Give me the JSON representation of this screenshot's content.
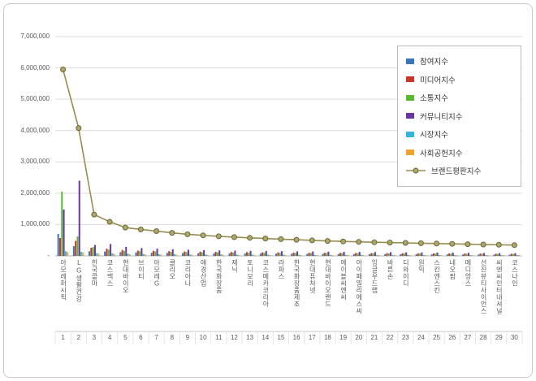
{
  "chart_data": {
    "type": "bar",
    "subtype": "grouped-bars-with-line-overlay",
    "title": "",
    "grid": true,
    "legend_position": "right-top",
    "categories": [
      "아모레퍼시픽",
      "LG생활건강",
      "한국콜마",
      "코스맥스",
      "현대바이오",
      "브이티",
      "아모레G",
      "클리오",
      "코리아나",
      "애경산업",
      "한국화장품",
      "제닉",
      "토니모리",
      "코스메카코리아",
      "라파스",
      "한국화장품제조",
      "현대퓨처넷",
      "현대바이오랜드",
      "에이블씨엔씨",
      "아이패밀리에스씨",
      "잉글우드랩",
      "바른손",
      "디와이디",
      "원익",
      "스킨엔스킨",
      "네오팜",
      "메디앙스",
      "선진뷰티사이언스",
      "씨엔씨인터내셔널",
      "코스나인"
    ],
    "ranks": [
      "1",
      "2",
      "3",
      "4",
      "5",
      "6",
      "7",
      "8",
      "9",
      "10",
      "11",
      "12",
      "13",
      "14",
      "15",
      "16",
      "17",
      "18",
      "19",
      "20",
      "21",
      "22",
      "23",
      "24",
      "25",
      "26",
      "27",
      "28",
      "29",
      "30"
    ],
    "y_axis": {
      "min": 0,
      "max": 7000000,
      "step": 1000000,
      "tick_labels": [
        "-",
        "1,000,000",
        "2,000,000",
        "3,000,000",
        "4,000,000",
        "5,000,000",
        "6,000,000",
        "7,000,000"
      ]
    },
    "series": [
      {
        "name": "참여지수",
        "color": "#3B74B8",
        "values": [
          700000,
          310000,
          150000,
          140000,
          120000,
          110000,
          100000,
          95000,
          90000,
          85000,
          80000,
          78000,
          75000,
          72000,
          70000,
          68000,
          65000,
          63000,
          60000,
          58000,
          56000,
          54000,
          52000,
          50000,
          48000,
          46000,
          44000,
          42000,
          40000,
          38000
        ]
      },
      {
        "name": "미디어지수",
        "color": "#C9342C",
        "values": [
          570000,
          480000,
          260000,
          230000,
          190000,
          170000,
          160000,
          150000,
          140000,
          135000,
          130000,
          125000,
          120000,
          115000,
          110000,
          105000,
          100000,
          98000,
          95000,
          92000,
          90000,
          88000,
          85000,
          82000,
          80000,
          78000,
          75000,
          72000,
          70000,
          68000
        ]
      },
      {
        "name": "소통지수",
        "color": "#58BB2F",
        "values": [
          2050000,
          620000,
          280000,
          200000,
          160000,
          150000,
          140000,
          130000,
          120000,
          115000,
          110000,
          105000,
          100000,
          98000,
          95000,
          92000,
          90000,
          88000,
          85000,
          82000,
          80000,
          78000,
          76000,
          74000,
          72000,
          70000,
          68000,
          66000,
          64000,
          62000
        ]
      },
      {
        "name": "커뮤니티지수",
        "color": "#6A35A0",
        "values": [
          1480000,
          2400000,
          350000,
          380000,
          290000,
          250000,
          230000,
          210000,
          195000,
          185000,
          175000,
          168000,
          160000,
          155000,
          150000,
          145000,
          140000,
          135000,
          130000,
          126000,
          122000,
          118000,
          114000,
          110000,
          106000,
          102000,
          98000,
          94000,
          90000,
          86000
        ]
      },
      {
        "name": "시장지수",
        "color": "#35B6D9",
        "values": [
          150000,
          130000,
          90000,
          80000,
          70000,
          60000,
          55000,
          50000,
          48000,
          46000,
          44000,
          42000,
          40000,
          38000,
          36000,
          35000,
          34000,
          33000,
          32000,
          31000,
          30000,
          29000,
          28000,
          27000,
          26000,
          25000,
          24000,
          23000,
          22000,
          21000
        ]
      },
      {
        "name": "사회공헌지수",
        "color": "#F0A22E",
        "values": [
          120000,
          110000,
          70000,
          60000,
          50000,
          45000,
          40000,
          38000,
          36000,
          34000,
          32000,
          31000,
          30000,
          29000,
          28000,
          27000,
          26000,
          25000,
          24000,
          23000,
          22000,
          21000,
          20000,
          19000,
          18000,
          17000,
          16000,
          15000,
          14000,
          13000
        ]
      }
    ],
    "line": {
      "name": "브랜드평판지수",
      "color": "#968E52",
      "marker_fill": "#AEA76B",
      "marker_stroke": "#6B6534",
      "values": [
        5950000,
        4080000,
        1320000,
        1090000,
        905000,
        845000,
        790000,
        735000,
        690000,
        655000,
        625000,
        600000,
        575000,
        555000,
        535000,
        515000,
        495000,
        478000,
        462000,
        448000,
        436000,
        425000,
        414000,
        404000,
        394000,
        384000,
        374000,
        364000,
        354000,
        344000
      ]
    }
  }
}
